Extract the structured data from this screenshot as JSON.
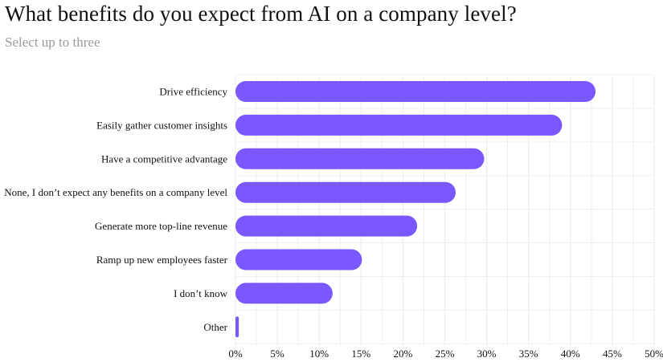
{
  "header": {
    "title": "What benefits do you expect from AI on a company level?",
    "subtitle": "Select up to three"
  },
  "colors": {
    "bar": "#7b57ff",
    "grid": "#ececec",
    "text": "#111111",
    "subtitle": "#9a9a9a"
  },
  "chart_data": {
    "type": "bar",
    "orientation": "horizontal",
    "title": "What benefits do you expect from AI on a company level?",
    "subtitle": "Select up to three",
    "categories": [
      "Drive efficiency",
      "Easily gather customer insights",
      "Have a competitive advantage",
      "None, I don’t expect any benefits on a company level",
      "Generate more top-line revenue",
      "Ramp up new employees faster",
      "I don’t know",
      "Other"
    ],
    "values": [
      43,
      39,
      29.7,
      26.3,
      21.7,
      15.1,
      11.6,
      0.4
    ],
    "unit": "%",
    "xlim": [
      0,
      50
    ],
    "xticks": [
      0,
      5,
      10,
      15,
      20,
      25,
      30,
      35,
      40,
      45,
      50
    ],
    "tick_labels": [
      "0%",
      "5%",
      "10%",
      "15%",
      "20%",
      "25%",
      "30%",
      "35%",
      "40%",
      "45%",
      "50%"
    ],
    "grid": true,
    "legend": "none"
  }
}
